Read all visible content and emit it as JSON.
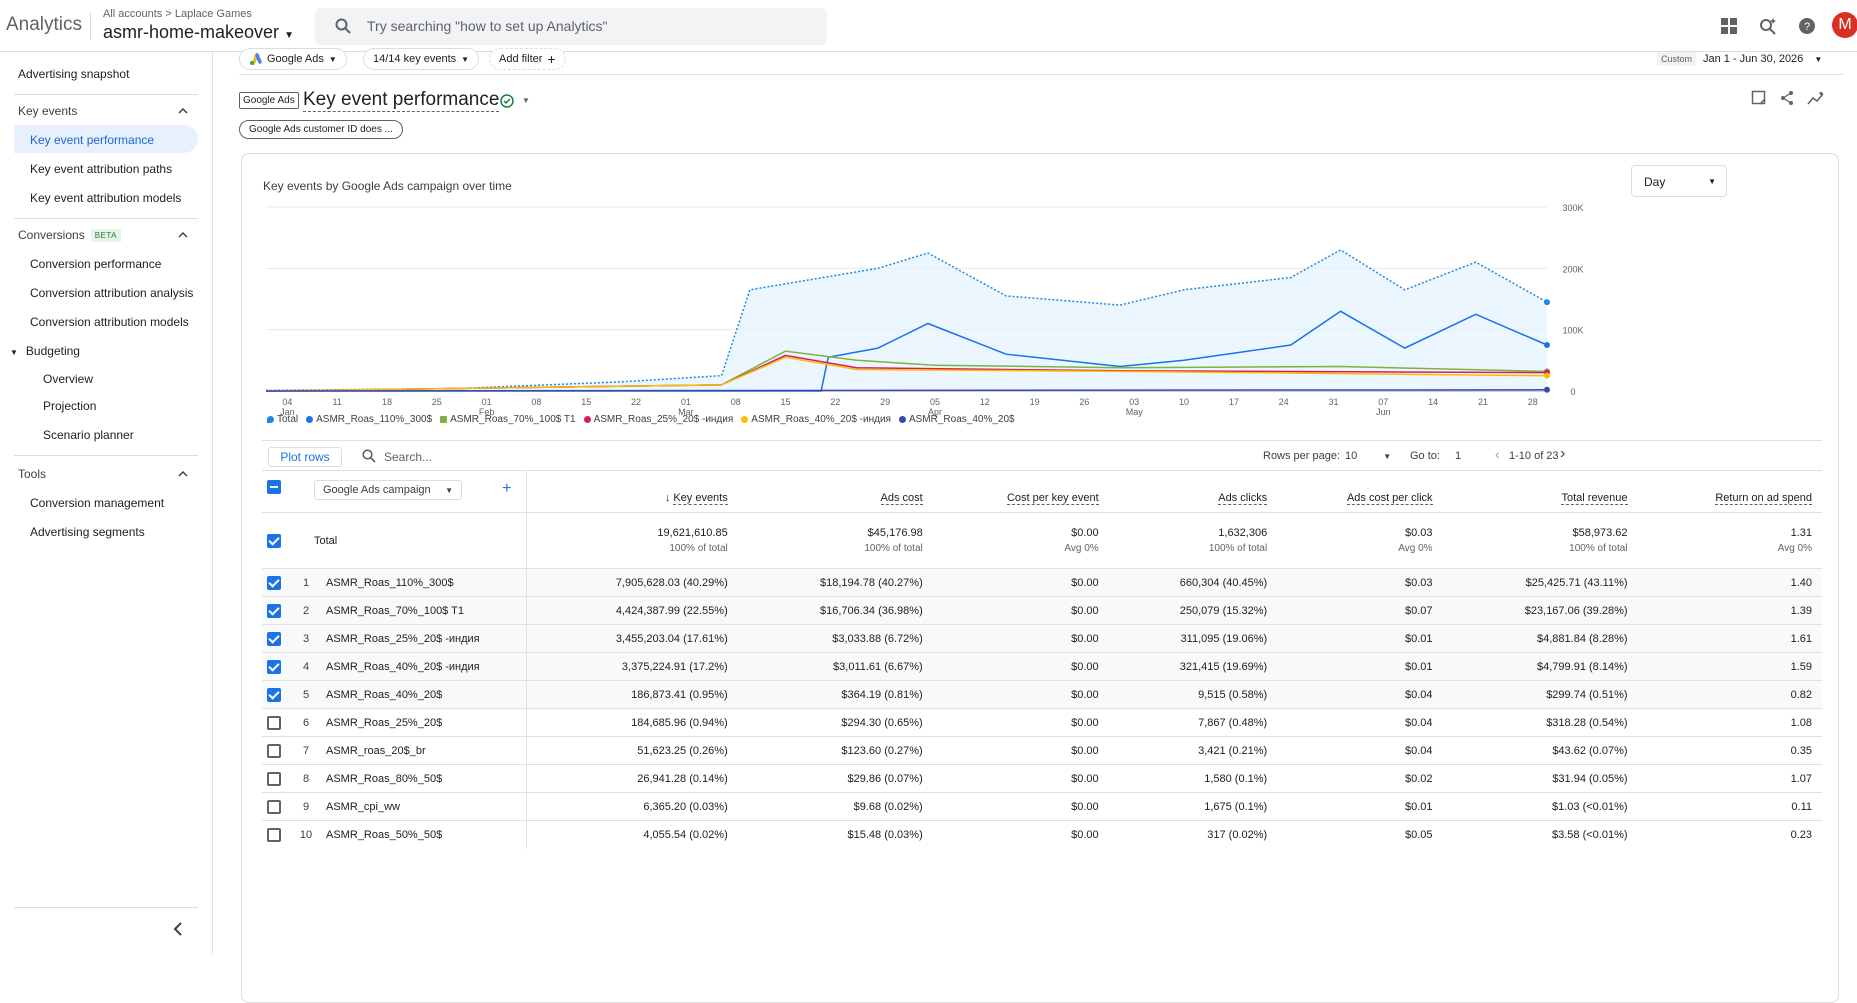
{
  "topbar": {
    "brand": "Analytics",
    "breadcrumb": "All accounts > Laplace Games",
    "property": "asmr-home-makeover",
    "search_placeholder": "Try searching \"how to set up Analytics\"",
    "avatar": "M"
  },
  "sidebar": {
    "snapshot": "Advertising snapshot",
    "key_events": "Key events",
    "ke_perf": "Key event performance",
    "ke_paths": "Key event attribution paths",
    "ke_models": "Key event attribution models",
    "conversions": "Conversions",
    "beta": "BETA",
    "conv_perf": "Conversion performance",
    "conv_analysis": "Conversion attribution analysis",
    "conv_models": "Conversion attribution models",
    "budgeting": "Budgeting",
    "overview": "Overview",
    "projection": "Projection",
    "scenario": "Scenario planner",
    "tools": "Tools",
    "conv_mgmt": "Conversion management",
    "adv_segments": "Advertising segments"
  },
  "filters": {
    "source": "Google Ads",
    "key_events": "14/14 key events",
    "add_filter": "Add filter",
    "date_label": "Custom",
    "date_range": "Jan 1 - Jun 30, 2026"
  },
  "header": {
    "badge": "Google Ads",
    "title": "Key event performance",
    "notice": "Google Ads customer ID does ..."
  },
  "chart_card": {
    "title": "Key events by Google Ads campaign over time",
    "granularity": "Day"
  },
  "chart_data": {
    "type": "line",
    "x_start": "2026-01-01",
    "x_end": "2026-06-30",
    "ylim": [
      0,
      300000
    ],
    "y_ticks": [
      "0",
      "100K",
      "200K",
      "300K"
    ],
    "x_ticks": [
      {
        "d": "04",
        "m": "Jan"
      },
      {
        "d": "11"
      },
      {
        "d": "18"
      },
      {
        "d": "25"
      },
      {
        "d": "01",
        "m": "Feb"
      },
      {
        "d": "08"
      },
      {
        "d": "15"
      },
      {
        "d": "22"
      },
      {
        "d": "01",
        "m": "Mar"
      },
      {
        "d": "08"
      },
      {
        "d": "15"
      },
      {
        "d": "22"
      },
      {
        "d": "29"
      },
      {
        "d": "05",
        "m": "Apr"
      },
      {
        "d": "12"
      },
      {
        "d": "19"
      },
      {
        "d": "26"
      },
      {
        "d": "03",
        "m": "May"
      },
      {
        "d": "10"
      },
      {
        "d": "17"
      },
      {
        "d": "24"
      },
      {
        "d": "31"
      },
      {
        "d": "07",
        "m": "Jun"
      },
      {
        "d": "14"
      },
      {
        "d": "21"
      },
      {
        "d": "28"
      }
    ],
    "series": [
      {
        "name": "Total",
        "color": "#1e88e5",
        "style": "dotted-area",
        "points": [
          [
            "2026-01-01",
            1000
          ],
          [
            "2026-01-28",
            4000
          ],
          [
            "2026-02-20",
            15000
          ],
          [
            "2026-03-06",
            25000
          ],
          [
            "2026-03-10",
            165000
          ],
          [
            "2026-03-28",
            200000
          ],
          [
            "2026-04-04",
            225000
          ],
          [
            "2026-04-15",
            155000
          ],
          [
            "2026-05-01",
            140000
          ],
          [
            "2026-05-10",
            165000
          ],
          [
            "2026-05-25",
            185000
          ],
          [
            "2026-06-01",
            230000
          ],
          [
            "2026-06-10",
            165000
          ],
          [
            "2026-06-20",
            210000
          ],
          [
            "2026-06-30",
            145000
          ]
        ]
      },
      {
        "name": "ASMR_Roas_110%_300$",
        "color": "#1a73e8",
        "points": [
          [
            "2026-01-01",
            0
          ],
          [
            "2026-03-20",
            0
          ],
          [
            "2026-03-21",
            55000
          ],
          [
            "2026-03-28",
            70000
          ],
          [
            "2026-04-04",
            110000
          ],
          [
            "2026-04-15",
            60000
          ],
          [
            "2026-05-01",
            40000
          ],
          [
            "2026-05-10",
            50000
          ],
          [
            "2026-05-25",
            75000
          ],
          [
            "2026-06-01",
            130000
          ],
          [
            "2026-06-10",
            70000
          ],
          [
            "2026-06-20",
            125000
          ],
          [
            "2026-06-30",
            75000
          ]
        ]
      },
      {
        "name": "ASMR_Roas_70%_100$ T1",
        "color": "#7cb342",
        "points": [
          [
            "2026-01-01",
            0
          ],
          [
            "2026-03-06",
            10000
          ],
          [
            "2026-03-15",
            65000
          ],
          [
            "2026-03-25",
            50000
          ],
          [
            "2026-04-05",
            42000
          ],
          [
            "2026-05-01",
            38000
          ],
          [
            "2026-06-01",
            40000
          ],
          [
            "2026-06-30",
            32000
          ]
        ]
      },
      {
        "name": "ASMR_Roas_25%_20$ -индия",
        "color": "#d81b60",
        "points": [
          [
            "2026-01-01",
            0
          ],
          [
            "2026-03-06",
            10000
          ],
          [
            "2026-03-15",
            58000
          ],
          [
            "2026-03-25",
            38000
          ],
          [
            "2026-05-01",
            33000
          ],
          [
            "2026-06-30",
            30000
          ]
        ]
      },
      {
        "name": "ASMR_Roas_40%_20$ -индия",
        "color": "#fbbc04",
        "points": [
          [
            "2026-01-01",
            0
          ],
          [
            "2026-03-06",
            10000
          ],
          [
            "2026-03-15",
            55000
          ],
          [
            "2026-03-25",
            35000
          ],
          [
            "2026-05-01",
            32000
          ],
          [
            "2026-06-30",
            25000
          ]
        ]
      },
      {
        "name": "ASMR_Roas_40%_20$",
        "color": "#3949ab",
        "points": [
          [
            "2026-01-01",
            0
          ],
          [
            "2026-06-30",
            2000
          ]
        ]
      }
    ]
  },
  "table_bar": {
    "plot_rows": "Plot rows",
    "search_placeholder": "Search...",
    "rows_label": "Rows per page:",
    "rows_value": "10",
    "goto_label": "Go to:",
    "goto_value": "1",
    "range": "1-10 of 23"
  },
  "table": {
    "dimension": "Google Ads campaign",
    "columns": [
      "Key events",
      "Ads cost",
      "Cost per key event",
      "Ads clicks",
      "Ads cost per click",
      "Total revenue",
      "Return on ad spend"
    ],
    "total": {
      "label": "Total",
      "values": [
        "19,621,610.85",
        "$45,176.98",
        "$0.00",
        "1,632,306",
        "$0.03",
        "$58,973.62",
        "1.31"
      ],
      "subs": [
        "100% of total",
        "100% of total",
        "Avg 0%",
        "100% of total",
        "Avg 0%",
        "100% of total",
        "Avg 0%"
      ]
    },
    "rows": [
      {
        "idx": "1",
        "name": "ASMR_Roas_110%_300$",
        "checked": true,
        "v": [
          "7,905,628.03 (40.29%)",
          "$18,194.78 (40.27%)",
          "$0.00",
          "660,304 (40.45%)",
          "$0.03",
          "$25,425.71 (43.11%)",
          "1.40"
        ]
      },
      {
        "idx": "2",
        "name": "ASMR_Roas_70%_100$ T1",
        "checked": true,
        "v": [
          "4,424,387.99 (22.55%)",
          "$16,706.34 (36.98%)",
          "$0.00",
          "250,079 (15.32%)",
          "$0.07",
          "$23,167.06 (39.28%)",
          "1.39"
        ]
      },
      {
        "idx": "3",
        "name": "ASMR_Roas_25%_20$ -индия",
        "checked": true,
        "v": [
          "3,455,203.04 (17.61%)",
          "$3,033.88 (6.72%)",
          "$0.00",
          "311,095 (19.06%)",
          "$0.01",
          "$4,881.84 (8.28%)",
          "1.61"
        ]
      },
      {
        "idx": "4",
        "name": "ASMR_Roas_40%_20$ -индия",
        "checked": true,
        "v": [
          "3,375,224.91 (17.2%)",
          "$3,011.61 (6.67%)",
          "$0.00",
          "321,415 (19.69%)",
          "$0.01",
          "$4,799.91 (8.14%)",
          "1.59"
        ]
      },
      {
        "idx": "5",
        "name": "ASMR_Roas_40%_20$",
        "checked": true,
        "v": [
          "186,873.41 (0.95%)",
          "$364.19 (0.81%)",
          "$0.00",
          "9,515 (0.58%)",
          "$0.04",
          "$299.74 (0.51%)",
          "0.82"
        ]
      },
      {
        "idx": "6",
        "name": "ASMR_Roas_25%_20$",
        "checked": false,
        "v": [
          "184,685.96 (0.94%)",
          "$294.30 (0.65%)",
          "$0.00",
          "7,867 (0.48%)",
          "$0.04",
          "$318.28 (0.54%)",
          "1.08"
        ]
      },
      {
        "idx": "7",
        "name": "ASMR_roas_20$_br",
        "checked": false,
        "v": [
          "51,623.25 (0.26%)",
          "$123.60 (0.27%)",
          "$0.00",
          "3,421 (0.21%)",
          "$0.04",
          "$43.62 (0.07%)",
          "0.35"
        ]
      },
      {
        "idx": "8",
        "name": "ASMR_Roas_80%_50$",
        "checked": false,
        "v": [
          "26,941.28 (0.14%)",
          "$29.86 (0.07%)",
          "$0.00",
          "1,580 (0.1%)",
          "$0.02",
          "$31.94 (0.05%)",
          "1.07"
        ]
      },
      {
        "idx": "9",
        "name": "ASMR_cpi_ww",
        "checked": false,
        "v": [
          "6,365.20 (0.03%)",
          "$9.68 (0.02%)",
          "$0.00",
          "1,675 (0.1%)",
          "$0.01",
          "$1.03 (<0.01%)",
          "0.11"
        ]
      },
      {
        "idx": "10",
        "name": "ASMR_Roas_50%_50$",
        "checked": false,
        "v": [
          "4,055.54 (0.02%)",
          "$15.48 (0.03%)",
          "$0.00",
          "317 (0.02%)",
          "$0.05",
          "$3.58 (<0.01%)",
          "0.23"
        ]
      }
    ]
  }
}
